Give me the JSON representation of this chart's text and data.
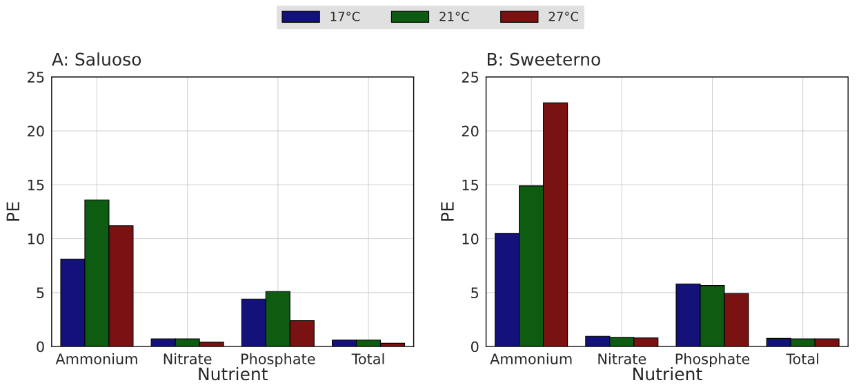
{
  "chart_data": [
    {
      "type": "bar",
      "title": "A: Saluoso",
      "xlabel": "Nutrient",
      "ylabel": "PE",
      "categories": [
        "Ammonium",
        "Nitrate",
        "Phosphate",
        "Total"
      ],
      "ylim": [
        0,
        25
      ],
      "yticks": [
        0,
        5,
        10,
        15,
        20,
        25
      ],
      "grid": true,
      "legend": "top",
      "series": [
        {
          "name": "17°C",
          "color": "#12127a",
          "values": [
            8.1,
            0.7,
            4.4,
            0.6
          ]
        },
        {
          "name": "21°C",
          "color": "#0e5c12",
          "values": [
            13.6,
            0.7,
            5.1,
            0.6
          ]
        },
        {
          "name": "27°C",
          "color": "#7a1212",
          "values": [
            11.2,
            0.4,
            2.4,
            0.3
          ]
        }
      ]
    },
    {
      "type": "bar",
      "title": "B: Sweeterno",
      "xlabel": "Nutrient",
      "ylabel": "PE",
      "categories": [
        "Ammonium",
        "Nitrate",
        "Phosphate",
        "Total"
      ],
      "ylim": [
        0,
        25
      ],
      "yticks": [
        0,
        5,
        10,
        15,
        20,
        25
      ],
      "grid": true,
      "series": [
        {
          "color": "#12127a",
          "values": [
            10.5,
            0.95,
            5.8,
            0.75
          ]
        },
        {
          "color": "#0e5c12",
          "values": [
            14.9,
            0.85,
            5.65,
            0.7
          ]
        },
        {
          "color": "#7a1212",
          "values": [
            22.6,
            0.8,
            4.9,
            0.7
          ]
        }
      ]
    }
  ]
}
